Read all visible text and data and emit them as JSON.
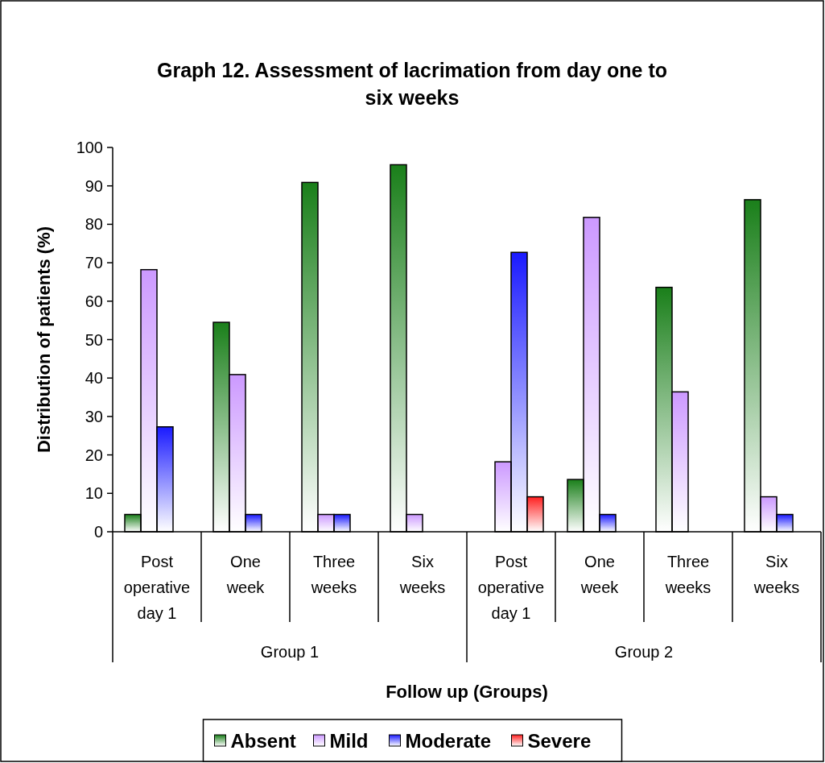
{
  "chart_data": {
    "type": "bar",
    "title": "Graph 12. Assessment of lacrimation from day one to six weeks",
    "xlabel": "Follow up (Groups)",
    "ylabel": "Distribution of patients (%)",
    "categories": [
      "Post operative day 1",
      "One week",
      "Three weeks",
      "Six weeks",
      "Post operative day 1",
      "One week",
      "Three weeks",
      "Six weeks"
    ],
    "annotations": [
      "Group 1",
      "Group 2"
    ],
    "series": [
      {
        "name": "Absent",
        "color": "#1a7f1a",
        "values": [
          4.5,
          54.5,
          90.9,
          95.5,
          0,
          13.6,
          63.6,
          86.4
        ]
      },
      {
        "name": "Mild",
        "color": "#cc99ff",
        "values": [
          68.2,
          40.9,
          4.5,
          4.5,
          18.2,
          81.8,
          36.4,
          9.1
        ]
      },
      {
        "name": "Moderate",
        "color": "#1a1aff",
        "values": [
          27.3,
          4.5,
          4.5,
          0,
          72.7,
          4.5,
          0,
          4.5
        ]
      },
      {
        "name": "Severe",
        "color": "#ff2020",
        "values": [
          0,
          0,
          0,
          0,
          9.1,
          0,
          0,
          0
        ]
      }
    ],
    "ylim": [
      0,
      100
    ],
    "yticks": [
      0,
      10,
      20,
      30,
      40,
      50,
      60,
      70,
      80,
      90,
      100
    ],
    "grid": false,
    "legend": "bottom"
  }
}
